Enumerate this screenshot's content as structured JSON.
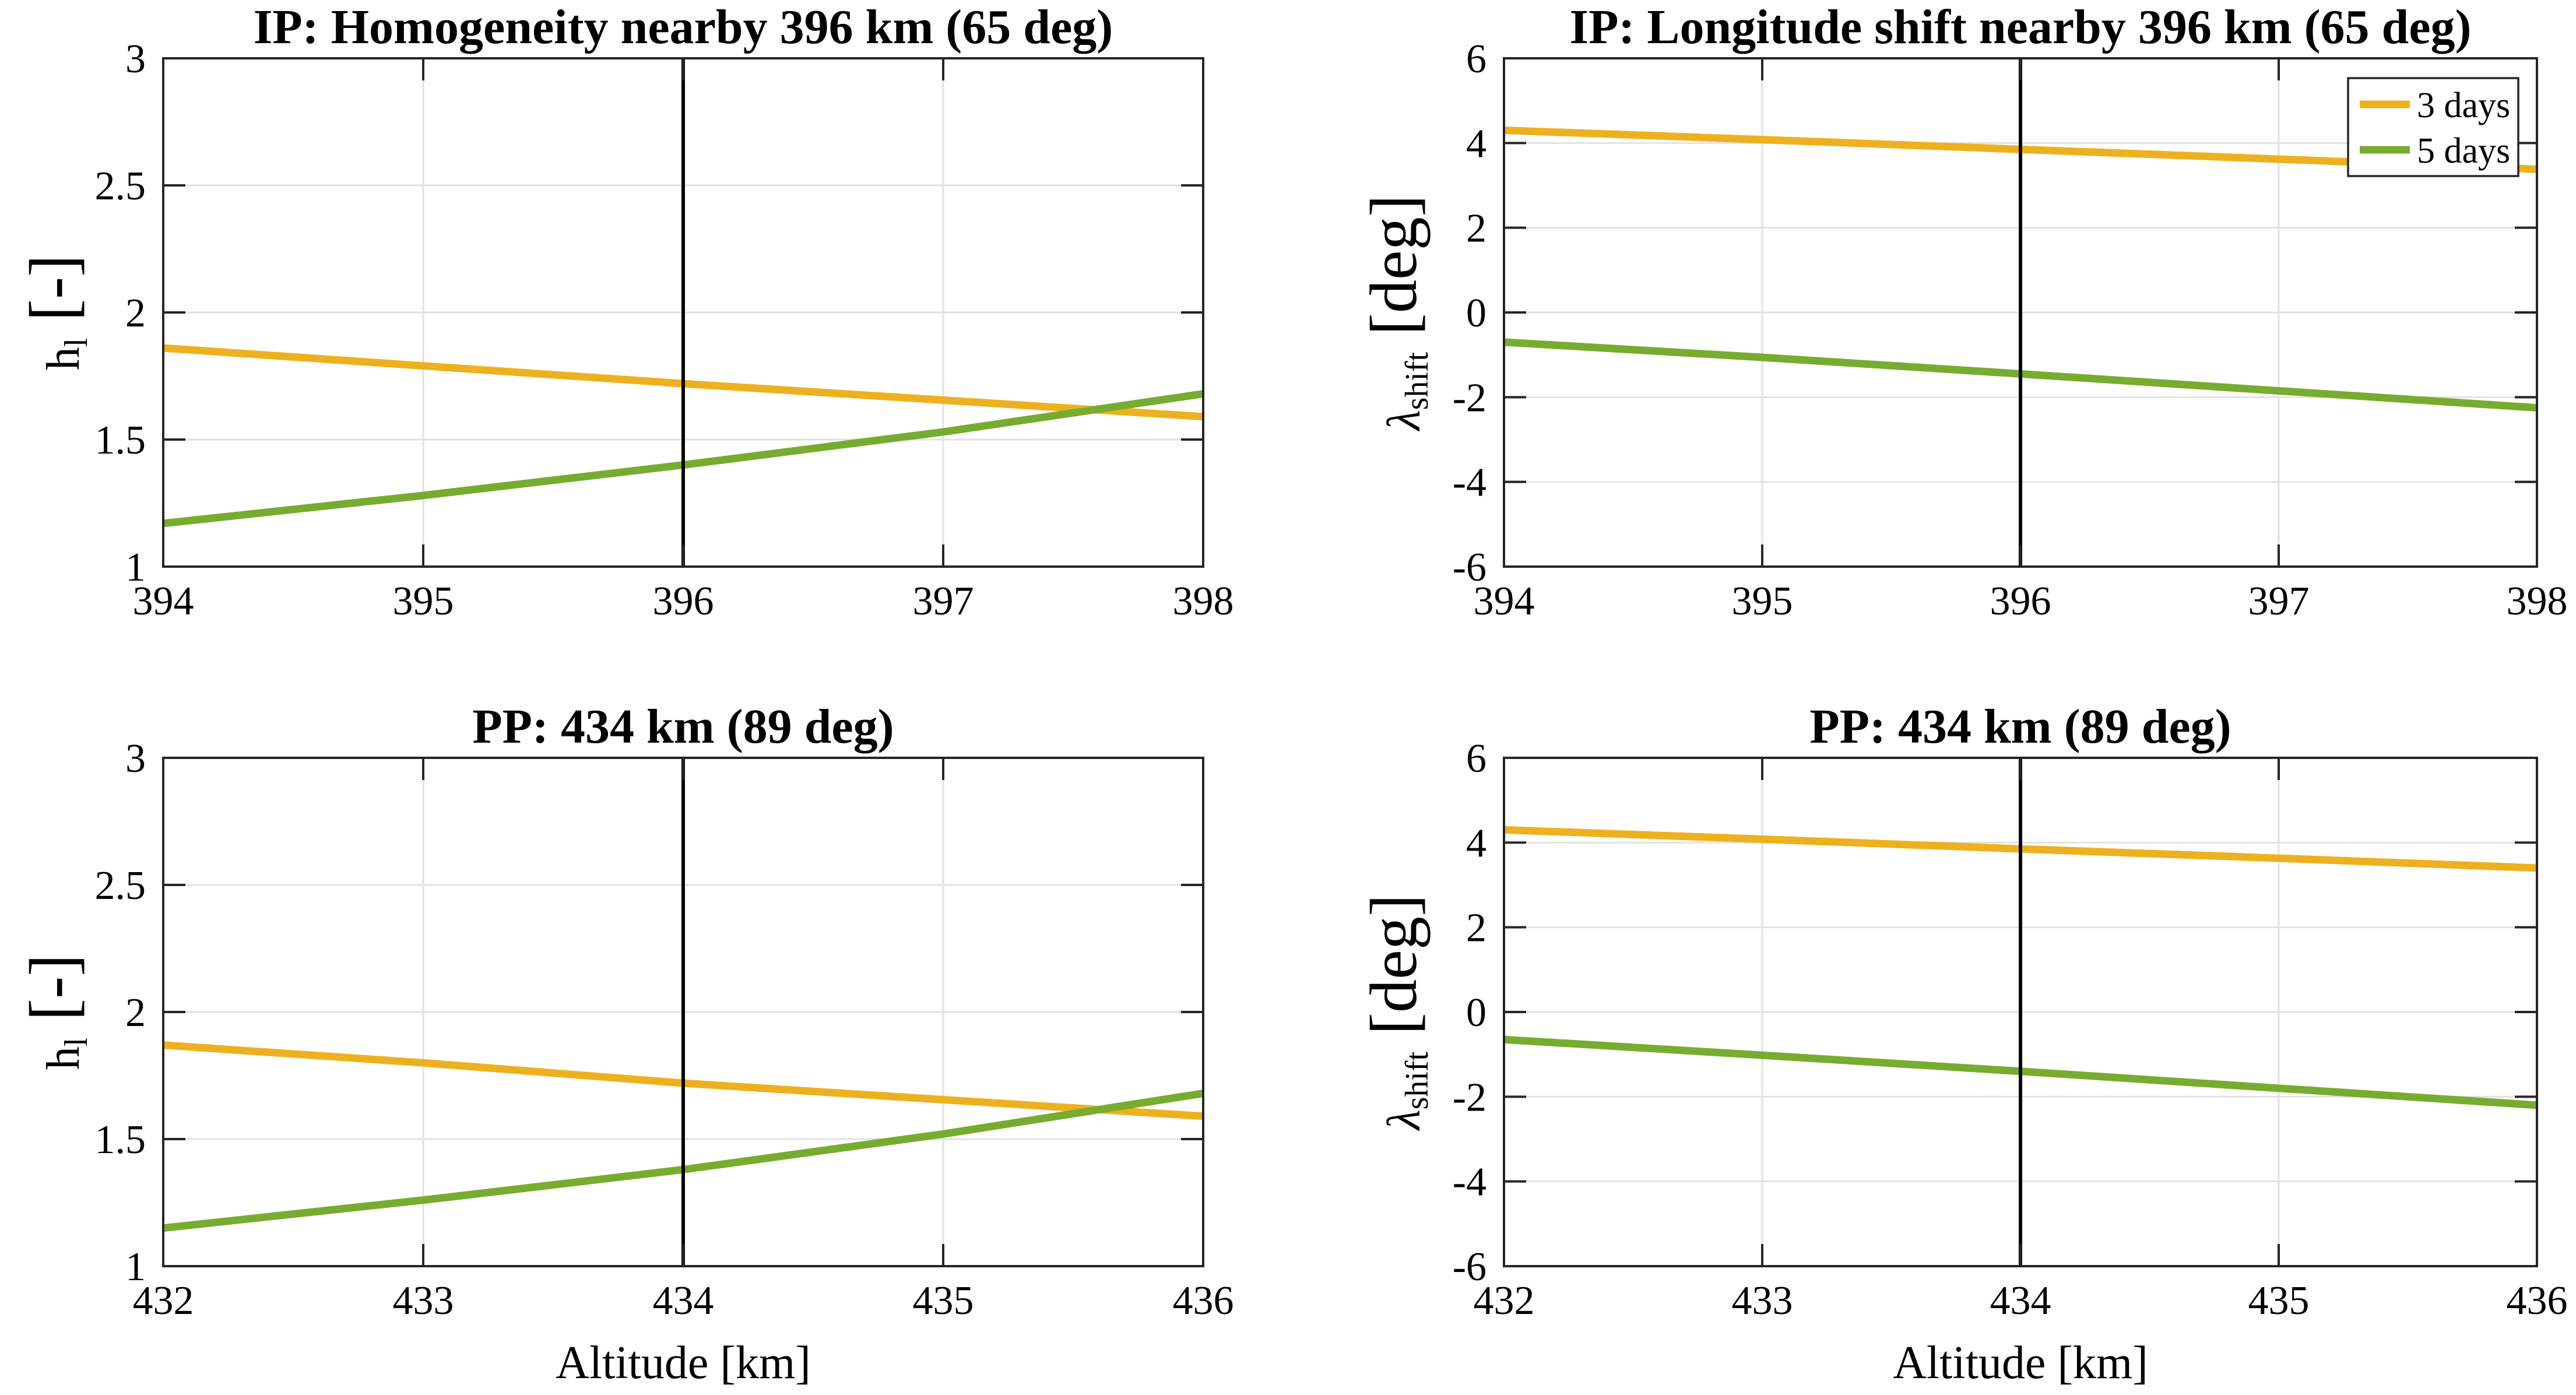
{
  "figure": {
    "background": "#ffffff",
    "axis_color": "#262626",
    "grid_color": "#e2e2e2",
    "marker_line_color": "#000000"
  },
  "legend": {
    "attached_to": "top-right-plot",
    "items": [
      {
        "label": "3 days",
        "color": "#EDB120"
      },
      {
        "label": "5 days",
        "color": "#77AC30"
      }
    ]
  },
  "chart_data": [
    {
      "id": "top-left",
      "type": "line",
      "title": "IP: Homogeneity nearby 396 km (65 deg)",
      "xlabel": "",
      "ylabel": {
        "base": "h",
        "sub": "l",
        "rest": " [-]",
        "italic": false
      },
      "xlim": [
        394,
        398
      ],
      "ylim": [
        1,
        3
      ],
      "xtick_labels": [
        "394",
        "395",
        "396",
        "397",
        "398"
      ],
      "xticks": [
        394,
        395,
        396,
        397,
        398
      ],
      "ytick_labels": [
        "1",
        "1.5",
        "2",
        "2.5",
        "3"
      ],
      "yticks": [
        1,
        1.5,
        2,
        2.5,
        3
      ],
      "grid": true,
      "marker_x": 396,
      "x": [
        394,
        395,
        396,
        397,
        398
      ],
      "series": [
        {
          "name": "3 days",
          "color": "#EDB120",
          "values": [
            1.86,
            1.79,
            1.72,
            1.655,
            1.59
          ]
        },
        {
          "name": "5 days",
          "color": "#77AC30",
          "values": [
            1.17,
            1.28,
            1.4,
            1.53,
            1.68
          ]
        }
      ],
      "legend": false
    },
    {
      "id": "top-right",
      "type": "line",
      "title": "IP: Longitude shift nearby 396 km (65 deg)",
      "xlabel": "",
      "ylabel": {
        "base": "λ",
        "sub": "shift",
        "rest": " [deg]",
        "italic": true
      },
      "xlim": [
        394,
        398
      ],
      "ylim": [
        -6,
        6
      ],
      "xtick_labels": [
        "394",
        "395",
        "396",
        "397",
        "398"
      ],
      "xticks": [
        394,
        395,
        396,
        397,
        398
      ],
      "ytick_labels": [
        "-6",
        "-4",
        "-2",
        "0",
        "2",
        "4",
        "6"
      ],
      "yticks": [
        -6,
        -4,
        -2,
        0,
        2,
        4,
        6
      ],
      "grid": true,
      "marker_x": 396,
      "x": [
        394,
        395,
        396,
        397,
        398
      ],
      "series": [
        {
          "name": "3 days",
          "color": "#EDB120",
          "values": [
            4.3,
            4.08,
            3.85,
            3.62,
            3.38
          ]
        },
        {
          "name": "5 days",
          "color": "#77AC30",
          "values": [
            -0.7,
            -1.06,
            -1.45,
            -1.85,
            -2.25
          ]
        }
      ],
      "legend": true
    },
    {
      "id": "bottom-left",
      "type": "line",
      "title": "PP: 434 km (89 deg)",
      "xlabel": "Altitude [km]",
      "ylabel": {
        "base": "h",
        "sub": "l",
        "rest": " [-]",
        "italic": false
      },
      "xlim": [
        432,
        436
      ],
      "ylim": [
        1,
        3
      ],
      "xtick_labels": [
        "432",
        "433",
        "434",
        "435",
        "436"
      ],
      "xticks": [
        432,
        433,
        434,
        435,
        436
      ],
      "ytick_labels": [
        "1",
        "1.5",
        "2",
        "2.5",
        "3"
      ],
      "yticks": [
        1,
        1.5,
        2,
        2.5,
        3
      ],
      "grid": true,
      "marker_x": 434,
      "x": [
        432,
        433,
        434,
        435,
        436
      ],
      "series": [
        {
          "name": "3 days",
          "color": "#EDB120",
          "values": [
            1.87,
            1.8,
            1.72,
            1.655,
            1.59
          ]
        },
        {
          "name": "5 days",
          "color": "#77AC30",
          "values": [
            1.15,
            1.26,
            1.38,
            1.52,
            1.68
          ]
        }
      ],
      "legend": false
    },
    {
      "id": "bottom-right",
      "type": "line",
      "title": "PP: 434 km (89 deg)",
      "xlabel": "Altitude [km]",
      "ylabel": {
        "base": "λ",
        "sub": "shift",
        "rest": " [deg]",
        "italic": true
      },
      "xlim": [
        432,
        436
      ],
      "ylim": [
        -6,
        6
      ],
      "xtick_labels": [
        "432",
        "433",
        "434",
        "435",
        "436"
      ],
      "xticks": [
        432,
        433,
        434,
        435,
        436
      ],
      "ytick_labels": [
        "-6",
        "-4",
        "-2",
        "0",
        "2",
        "4",
        "6"
      ],
      "yticks": [
        -6,
        -4,
        -2,
        0,
        2,
        4,
        6
      ],
      "grid": true,
      "marker_x": 434,
      "x": [
        432,
        433,
        434,
        435,
        436
      ],
      "series": [
        {
          "name": "3 days",
          "color": "#EDB120",
          "values": [
            4.3,
            4.08,
            3.85,
            3.63,
            3.4
          ]
        },
        {
          "name": "5 days",
          "color": "#77AC30",
          "values": [
            -0.65,
            -1.02,
            -1.4,
            -1.8,
            -2.2
          ]
        }
      ],
      "legend": true,
      "legend_hidden": true
    }
  ]
}
